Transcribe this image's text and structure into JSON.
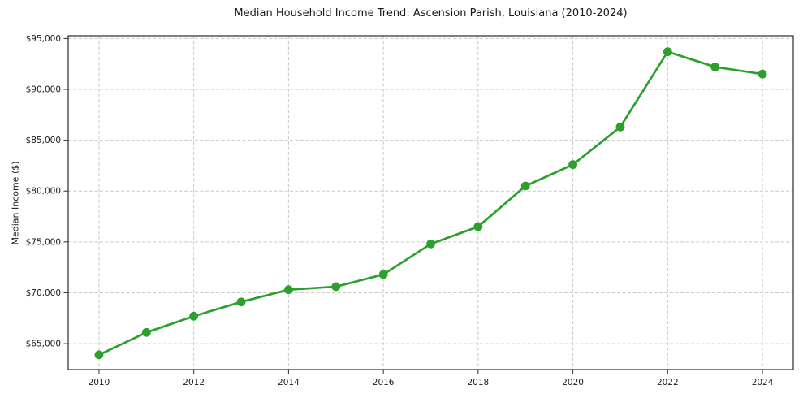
{
  "chart_data": {
    "type": "line",
    "title": "Median Household Income Trend: Ascension Parish, Louisiana (2010-2024)",
    "xlabel": "",
    "ylabel": "Median Income ($)",
    "x": [
      2010,
      2011,
      2012,
      2013,
      2014,
      2015,
      2016,
      2017,
      2018,
      2019,
      2020,
      2021,
      2022,
      2023,
      2024
    ],
    "series": [
      {
        "name": "Median household income",
        "values": [
          63900,
          66100,
          67700,
          69100,
          70300,
          70600,
          71800,
          74800,
          76500,
          80500,
          82600,
          86300,
          93700,
          92200,
          91500
        ]
      }
    ],
    "xlim": [
      2009.35,
      2024.65
    ],
    "ylim": [
      62450,
      95270
    ],
    "x_ticks": [
      2010,
      2012,
      2014,
      2016,
      2018,
      2020,
      2022,
      2024
    ],
    "x_tick_labels": [
      "2010",
      "2012",
      "2014",
      "2016",
      "2018",
      "2020",
      "2022",
      "2024"
    ],
    "y_ticks": [
      65000,
      70000,
      75000,
      80000,
      85000,
      90000,
      95000
    ],
    "y_tick_labels": [
      "$65,000",
      "$70,000",
      "$75,000",
      "$80,000",
      "$85,000",
      "$90,000",
      "$95,000"
    ],
    "grid": true,
    "legend": "none",
    "colors": {
      "line": "#2ca02c",
      "marker": "#2ca02c",
      "grid": "#c9c9c9",
      "spine": "#2b2b2b",
      "text": "#1a1a1a",
      "background": "#ffffff"
    }
  }
}
